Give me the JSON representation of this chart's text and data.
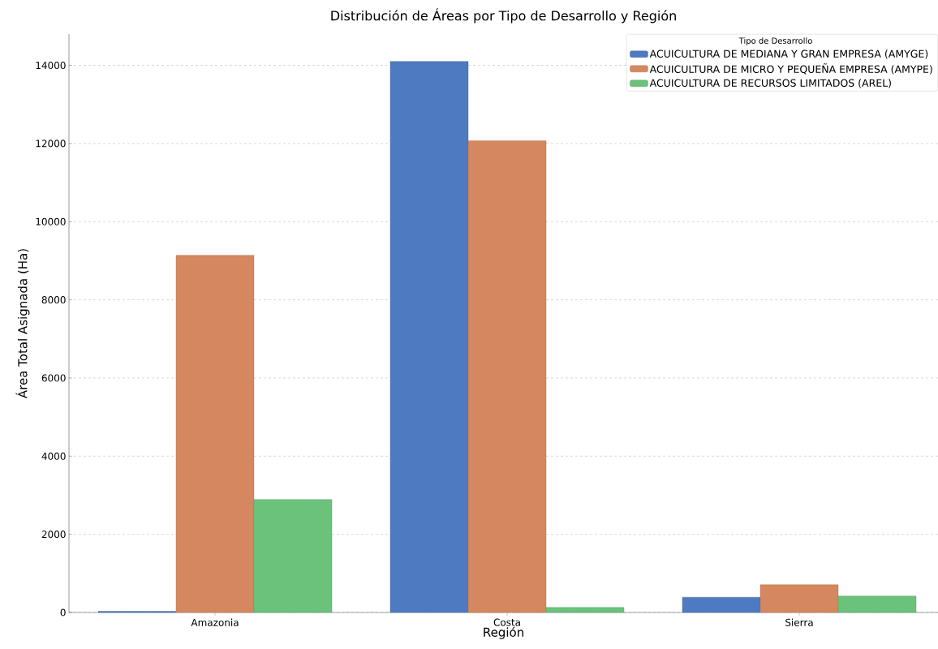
{
  "chart_data": {
    "type": "bar",
    "title": "Distribución de Áreas por Tipo de Desarrollo y Región",
    "xlabel": "Región",
    "ylabel": "Área Total Asignada (Ha)",
    "legend_title": "Tipo de Desarrollo",
    "categories": [
      "Amazonia",
      "Costa",
      "Sierra"
    ],
    "series": [
      {
        "name": "ACUICULTURA DE MEDIANA Y GRAN EMPRESA (AMYGE)",
        "color": "#4e7ac1",
        "values": [
          30,
          14100,
          390
        ]
      },
      {
        "name": "ACUICULTURA DE MICRO Y PEQUEÑA EMPRESA (AMYPE)",
        "color": "#d5875f",
        "values": [
          9140,
          12070,
          710
        ]
      },
      {
        "name": "ACUICULTURA DE RECURSOS LIMITADOS (AREL)",
        "color": "#6bc27a",
        "values": [
          2890,
          130,
          420
        ]
      }
    ],
    "ylim": [
      0,
      14800
    ],
    "yticks": [
      0,
      2000,
      4000,
      6000,
      8000,
      10000,
      12000,
      14000
    ],
    "grid": "y",
    "legend": "top right"
  }
}
